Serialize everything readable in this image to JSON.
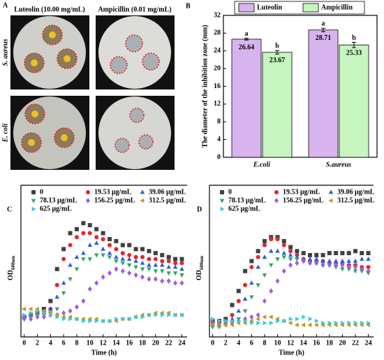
{
  "panel_a": {
    "panel": "A",
    "titles": [
      "Luteolin (10.00 mg/mL)",
      "Ampicillin (0.01 mg/mL)"
    ],
    "rows": [
      "S. aureus",
      "E. coli"
    ]
  },
  "chart_data": [
    {
      "type": "bar",
      "panel": "B",
      "ylabel": "The diameter of the inhibition zone (mm)",
      "categories": [
        "E.coli",
        "S.aureus"
      ],
      "series": [
        {
          "name": "Luteolin",
          "color": "#d8b4ee",
          "values": [
            26.64,
            28.71
          ],
          "errors": [
            0.2,
            0.4
          ],
          "letters": [
            "a",
            "a"
          ]
        },
        {
          "name": "Ampicillin",
          "color": "#c6f5c0",
          "values": [
            23.67,
            25.33
          ],
          "errors": [
            0.4,
            0.6
          ],
          "letters": [
            "b",
            "b"
          ]
        }
      ],
      "ylim": [
        0,
        32
      ],
      "yticks": [
        0,
        4,
        8,
        12,
        16,
        20,
        24,
        28,
        32
      ]
    },
    {
      "type": "scatter",
      "panel": "C",
      "xlabel": "Time (h)",
      "ylabel": "OD",
      "ylabel_sub": "600nm",
      "x": [
        0,
        1,
        2,
        3,
        4,
        5,
        6,
        7,
        8,
        9,
        10,
        11,
        12,
        13,
        14,
        15,
        16,
        17,
        18,
        19,
        20,
        21,
        22,
        23,
        24
      ],
      "xlim": [
        -0.5,
        24.8
      ],
      "xticks": [
        0,
        2,
        4,
        6,
        8,
        10,
        12,
        14,
        16,
        18,
        20,
        22,
        24
      ],
      "ylim": [
        0.06,
        0.82
      ],
      "series": [
        {
          "name": "0",
          "color": "#404040",
          "marker": "square",
          "values": [
            0.16,
            0.17,
            0.18,
            0.2,
            0.24,
            0.4,
            0.5,
            0.58,
            0.6,
            0.63,
            0.62,
            0.6,
            0.58,
            0.55,
            0.54,
            0.52,
            0.52,
            0.5,
            0.5,
            0.49,
            0.48,
            0.47,
            0.46,
            0.45,
            0.45
          ]
        },
        {
          "name": "19.53 μg/mL",
          "color": "#e8242a",
          "marker": "circle",
          "values": [
            0.16,
            0.17,
            0.18,
            0.19,
            0.2,
            0.32,
            0.45,
            0.52,
            0.56,
            0.58,
            0.58,
            0.56,
            0.55,
            0.52,
            0.5,
            0.48,
            0.47,
            0.46,
            0.46,
            0.45,
            0.45,
            0.44,
            0.44,
            0.43,
            0.43
          ]
        },
        {
          "name": "39.06 μg/mL",
          "color": "#2d5fd6",
          "marker": "triangle-up",
          "values": [
            0.16,
            0.17,
            0.18,
            0.19,
            0.2,
            0.26,
            0.33,
            0.42,
            0.46,
            0.48,
            0.52,
            0.53,
            0.5,
            0.48,
            0.46,
            0.45,
            0.45,
            0.44,
            0.43,
            0.42,
            0.42,
            0.42,
            0.41,
            0.41,
            0.4
          ]
        },
        {
          "name": "78.13 μg/mL",
          "color": "#2fa860",
          "marker": "triangle-down",
          "values": [
            0.15,
            0.16,
            0.17,
            0.17,
            0.18,
            0.2,
            0.28,
            0.35,
            0.4,
            0.45,
            0.45,
            0.47,
            0.47,
            0.46,
            0.44,
            0.43,
            0.42,
            0.41,
            0.4,
            0.4,
            0.39,
            0.39,
            0.38,
            0.38,
            0.37
          ]
        },
        {
          "name": "156.25 μg/mL",
          "color": "#a25fd8",
          "marker": "diamond",
          "values": [
            0.15,
            0.15,
            0.16,
            0.16,
            0.17,
            0.17,
            0.18,
            0.19,
            0.21,
            0.24,
            0.3,
            0.33,
            0.36,
            0.38,
            0.4,
            0.39,
            0.38,
            0.37,
            0.36,
            0.35,
            0.35,
            0.34,
            0.34,
            0.33,
            0.33
          ]
        },
        {
          "name": "312.5 μg/mL",
          "color": "#c8961e",
          "marker": "triangle-left",
          "values": [
            0.2,
            0.2,
            0.2,
            0.19,
            0.18,
            0.17,
            0.16,
            0.16,
            0.15,
            0.15,
            0.15,
            0.15,
            0.14,
            0.14,
            0.14,
            0.15,
            0.15,
            0.16,
            0.17,
            0.17,
            0.18,
            0.18,
            0.18,
            0.17,
            0.17
          ]
        },
        {
          "name": "625 μg/mL",
          "color": "#3cc8d8",
          "marker": "triangle-right",
          "values": [
            0.17,
            0.18,
            0.19,
            0.18,
            0.17,
            0.16,
            0.15,
            0.15,
            0.15,
            0.14,
            0.14,
            0.14,
            0.14,
            0.14,
            0.15,
            0.15,
            0.15,
            0.16,
            0.16,
            0.17,
            0.17,
            0.17,
            0.17,
            0.17,
            0.17
          ]
        }
      ]
    },
    {
      "type": "scatter",
      "panel": "D",
      "xlabel": "Time (h)",
      "ylabel": "OD",
      "ylabel_sub": "600nm",
      "x": [
        0,
        1,
        2,
        3,
        4,
        5,
        6,
        7,
        8,
        9,
        10,
        11,
        12,
        13,
        14,
        15,
        16,
        17,
        18,
        19,
        20,
        21,
        22,
        23,
        24
      ],
      "xlim": [
        -0.5,
        24.8
      ],
      "xticks": [
        0,
        2,
        4,
        6,
        8,
        10,
        12,
        14,
        16,
        18,
        20,
        22,
        24
      ],
      "ylim": [
        0.07,
        0.83
      ],
      "series": [
        {
          "name": "0",
          "color": "#404040",
          "marker": "square",
          "values": [
            0.15,
            0.15,
            0.16,
            0.23,
            0.3,
            0.4,
            0.45,
            0.5,
            0.55,
            0.57,
            0.57,
            0.55,
            0.52,
            0.5,
            0.49,
            0.48,
            0.48,
            0.48,
            0.49,
            0.49,
            0.49,
            0.49,
            0.5,
            0.49,
            0.49
          ]
        },
        {
          "name": "19.53 μg/mL",
          "color": "#e8242a",
          "marker": "circle",
          "values": [
            0.14,
            0.14,
            0.15,
            0.18,
            0.25,
            0.33,
            0.42,
            0.47,
            0.53,
            0.56,
            0.56,
            0.53,
            0.5,
            0.48,
            0.46,
            0.45,
            0.45,
            0.45,
            0.44,
            0.44,
            0.44,
            0.43,
            0.43,
            0.42,
            0.42
          ]
        },
        {
          "name": "39.06 μg/mL",
          "color": "#2d5fd6",
          "marker": "triangle-up",
          "values": [
            0.13,
            0.13,
            0.14,
            0.16,
            0.2,
            0.26,
            0.34,
            0.42,
            0.47,
            0.5,
            0.5,
            0.49,
            0.48,
            0.47,
            0.46,
            0.46,
            0.46,
            0.45,
            0.45,
            0.45,
            0.45,
            0.45,
            0.45,
            0.46,
            0.46
          ]
        },
        {
          "name": "78.13 μg/mL",
          "color": "#2fa860",
          "marker": "triangle-down",
          "values": [
            0.12,
            0.12,
            0.13,
            0.14,
            0.16,
            0.2,
            0.27,
            0.33,
            0.38,
            0.43,
            0.46,
            0.47,
            0.46,
            0.46,
            0.45,
            0.44,
            0.44,
            0.43,
            0.43,
            0.42,
            0.41,
            0.41,
            0.4,
            0.4,
            0.39
          ]
        },
        {
          "name": "156.25 μg/mL",
          "color": "#a25fd8",
          "marker": "diamond",
          "values": [
            0.14,
            0.13,
            0.14,
            0.14,
            0.15,
            0.16,
            0.17,
            0.18,
            0.25,
            0.3,
            0.35,
            0.4,
            0.43,
            0.44,
            0.45,
            0.44,
            0.44,
            0.43,
            0.43,
            0.43,
            0.43,
            0.42,
            0.42,
            0.41,
            0.4
          ]
        },
        {
          "name": "312.5 μg/mL",
          "color": "#c8961e",
          "marker": "triangle-left",
          "values": [
            0.13,
            0.13,
            0.13,
            0.13,
            0.14,
            0.14,
            0.15,
            0.16,
            0.17,
            0.17,
            0.16,
            0.15,
            0.14,
            0.13,
            0.13,
            0.13,
            0.13,
            0.13,
            0.13,
            0.13,
            0.13,
            0.13,
            0.13,
            0.13,
            0.13
          ]
        },
        {
          "name": "625 μg/mL",
          "color": "#3cc8d8",
          "marker": "triangle-right",
          "values": [
            0.16,
            0.15,
            0.15,
            0.15,
            0.15,
            0.15,
            0.14,
            0.14,
            0.14,
            0.14,
            0.15,
            0.15,
            0.16,
            0.16,
            0.17,
            0.16,
            0.15,
            0.14,
            0.14,
            0.14,
            0.14,
            0.14,
            0.14,
            0.14,
            0.14
          ]
        }
      ]
    }
  ]
}
